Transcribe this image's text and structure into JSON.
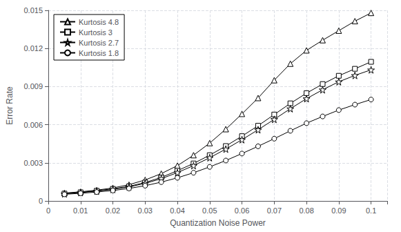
{
  "chart_data": {
    "type": "line",
    "xlabel": "Quantization Noise Power",
    "ylabel": "Error Rate",
    "x": [
      0.005,
      0.01,
      0.015,
      0.02,
      0.025,
      0.03,
      0.035,
      0.04,
      0.045,
      0.05,
      0.055,
      0.06,
      0.065,
      0.07,
      0.075,
      0.08,
      0.085,
      0.09,
      0.095,
      0.1
    ],
    "series": [
      {
        "name": "Kurtosis 4.8",
        "color": "#000000",
        "marker": "triangle",
        "values": [
          0.00062,
          0.00072,
          0.00085,
          0.00102,
          0.00128,
          0.00165,
          0.00215,
          0.00278,
          0.0036,
          0.00455,
          0.00565,
          0.00685,
          0.0081,
          0.0095,
          0.0108,
          0.01185,
          0.01265,
          0.0134,
          0.01415,
          0.0148
        ]
      },
      {
        "name": "Kurtosis 3",
        "color": "#000000",
        "marker": "square",
        "values": [
          0.00058,
          0.00068,
          0.0008,
          0.00095,
          0.00115,
          0.00145,
          0.00185,
          0.00238,
          0.00295,
          0.0036,
          0.00432,
          0.0051,
          0.00592,
          0.0068,
          0.00768,
          0.00848,
          0.0092,
          0.00985,
          0.0104,
          0.01095
        ]
      },
      {
        "name": "Kurtosis 2.7",
        "color": "#000000",
        "marker": "star",
        "values": [
          0.00056,
          0.00066,
          0.00077,
          0.00091,
          0.0011,
          0.00138,
          0.00175,
          0.00223,
          0.00278,
          0.0034,
          0.00408,
          0.00482,
          0.0056,
          0.00642,
          0.00726,
          0.00805,
          0.00875,
          0.00938,
          0.00988,
          0.01032
        ]
      },
      {
        "name": "Kurtosis 1.8",
        "color": "#000000",
        "marker": "circle",
        "values": [
          0.00052,
          0.0006,
          0.0007,
          0.00082,
          0.00098,
          0.0012,
          0.00148,
          0.00182,
          0.00222,
          0.00268,
          0.00318,
          0.00373,
          0.0043,
          0.0049,
          0.00552,
          0.00612,
          0.00665,
          0.00715,
          0.00758,
          0.00798
        ]
      }
    ],
    "xlim": [
      0,
      0.105
    ],
    "ylim": [
      0,
      0.015
    ],
    "xticks": [
      0,
      0.01,
      0.02,
      0.03,
      0.04,
      0.05,
      0.06,
      0.07,
      0.08,
      0.09,
      0.1
    ],
    "yticks": [
      0,
      0.003,
      0.006,
      0.009,
      0.012,
      0.015
    ],
    "grid": true,
    "legend": "upper left"
  }
}
